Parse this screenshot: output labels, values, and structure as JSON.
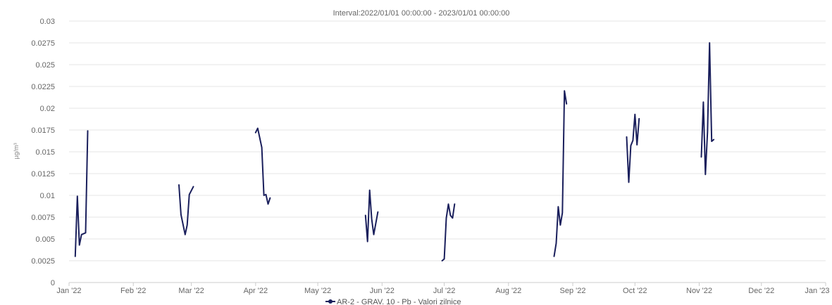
{
  "chart_data": {
    "type": "line",
    "title": "Interval:2022/01/01 00:00:00 - 2023/01/01 00:00:00",
    "xlabel": "",
    "ylabel": "µg/m³",
    "ylim": [
      0,
      0.03
    ],
    "xlim": [
      "2022-01-01",
      "2023-01-01"
    ],
    "y_ticks": [
      "0",
      "0.0025",
      "0.005",
      "0.0075",
      "0.01",
      "0.0125",
      "0.015",
      "0.0175",
      "0.02",
      "0.0225",
      "0.025",
      "0.0275",
      "0.03"
    ],
    "x_ticks": [
      {
        "label": "Jan '22",
        "date": "2022-01-01"
      },
      {
        "label": "Feb '22",
        "date": "2022-02-01"
      },
      {
        "label": "Mar '22",
        "date": "2022-03-01"
      },
      {
        "label": "Apr '22",
        "date": "2022-04-01"
      },
      {
        "label": "May '22",
        "date": "2022-05-01"
      },
      {
        "label": "Jun '22",
        "date": "2022-06-01"
      },
      {
        "label": "Jul '22",
        "date": "2022-07-01"
      },
      {
        "label": "Aug '22",
        "date": "2022-08-01"
      },
      {
        "label": "Sep '22",
        "date": "2022-09-01"
      },
      {
        "label": "Oct '22",
        "date": "2022-10-01"
      },
      {
        "label": "Nov '22",
        "date": "2022-11-01"
      },
      {
        "label": "Dec '22",
        "date": "2022-12-01"
      },
      {
        "label": "Jan '23",
        "date": "2023-01-01"
      }
    ],
    "grid": true,
    "legend_position": "bottom-center",
    "series": [
      {
        "name": "AR-2 - GRAV. 10 - Pb - Valori zilnice",
        "color": "#1a1f5c",
        "segments": [
          [
            [
              "2022-01-04",
              0.003
            ],
            [
              "2022-01-05",
              0.0099
            ],
            [
              "2022-01-06",
              0.0043
            ],
            [
              "2022-01-07",
              0.0055
            ],
            [
              "2022-01-09",
              0.0057
            ],
            [
              "2022-01-10",
              0.0174
            ]
          ],
          [
            [
              "2022-02-23",
              0.0112
            ],
            [
              "2022-02-24",
              0.0078
            ],
            [
              "2022-02-26",
              0.0055
            ],
            [
              "2022-02-27",
              0.0066
            ],
            [
              "2022-02-28",
              0.0101
            ],
            [
              "2022-03-02",
              0.011
            ]
          ],
          [
            [
              "2022-04-01",
              0.0172
            ],
            [
              "2022-04-02",
              0.0177
            ],
            [
              "2022-04-04",
              0.0155
            ],
            [
              "2022-04-05",
              0.01
            ],
            [
              "2022-04-06",
              0.0101
            ],
            [
              "2022-04-07",
              0.009
            ],
            [
              "2022-04-08",
              0.0097
            ]
          ],
          [
            [
              "2022-05-24",
              0.0077
            ],
            [
              "2022-05-25",
              0.0047
            ],
            [
              "2022-05-26",
              0.0106
            ],
            [
              "2022-05-27",
              0.0073
            ],
            [
              "2022-05-28",
              0.0055
            ],
            [
              "2022-05-30",
              0.0081
            ]
          ],
          [
            [
              "2022-06-30",
              0.0025
            ],
            [
              "2022-07-01",
              0.0027
            ],
            [
              "2022-07-02",
              0.0074
            ],
            [
              "2022-07-03",
              0.009
            ],
            [
              "2022-07-04",
              0.0077
            ],
            [
              "2022-07-05",
              0.0074
            ],
            [
              "2022-07-06",
              0.009
            ]
          ],
          [
            [
              "2022-08-23",
              0.003
            ],
            [
              "2022-08-24",
              0.0045
            ],
            [
              "2022-08-25",
              0.0087
            ],
            [
              "2022-08-26",
              0.0066
            ],
            [
              "2022-08-27",
              0.008
            ],
            [
              "2022-08-28",
              0.022
            ],
            [
              "2022-08-29",
              0.0205
            ]
          ],
          [
            [
              "2022-09-27",
              0.0167
            ],
            [
              "2022-09-28",
              0.0115
            ],
            [
              "2022-09-29",
              0.0157
            ],
            [
              "2022-09-30",
              0.0163
            ],
            [
              "2022-10-01",
              0.0193
            ],
            [
              "2022-10-02",
              0.0158
            ],
            [
              "2022-10-03",
              0.0188
            ]
          ],
          [
            [
              "2022-11-02",
              0.0144
            ],
            [
              "2022-11-03",
              0.0207
            ],
            [
              "2022-11-04",
              0.0124
            ],
            [
              "2022-11-05",
              0.0173
            ],
            [
              "2022-11-06",
              0.0275
            ],
            [
              "2022-11-07",
              0.0162
            ],
            [
              "2022-11-08",
              0.0164
            ]
          ]
        ]
      }
    ]
  }
}
